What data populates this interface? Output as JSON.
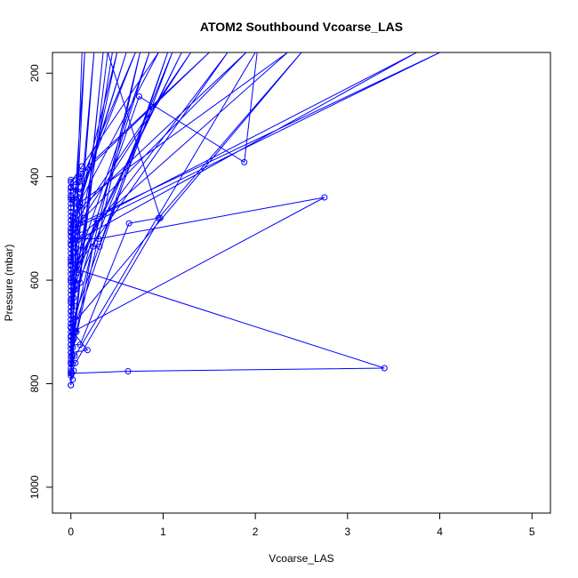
{
  "chart_data": {
    "type": "line",
    "title": "ATOM2 Southbound Vcoarse_LAS",
    "xlabel": "Vcoarse_LAS",
    "ylabel": "Pressure (mbar)",
    "xlim": [
      -0.2,
      5.2
    ],
    "ylim": [
      1050,
      160
    ],
    "y_reversed": true,
    "grid": false,
    "line_color": "#0000ff",
    "marker": "open-circle",
    "x_ticks": [
      0,
      1,
      2,
      3,
      4,
      5
    ],
    "x_tick_labels": [
      "0",
      "1",
      "2",
      "3",
      "4",
      "5"
    ],
    "y_ticks": [
      200,
      400,
      600,
      800,
      1000
    ],
    "y_tick_labels": [
      "200",
      "400",
      "600",
      "800",
      "1000"
    ],
    "series": [
      {
        "points": [
          [
            0.0,
            803
          ],
          [
            0.01,
            780
          ],
          [
            0.62,
            776
          ],
          [
            3.4,
            770
          ],
          [
            0.08,
            580
          ],
          [
            0.74,
            245
          ],
          [
            1.88,
            372
          ],
          [
            2.02,
            160
          ],
          [
            2.0,
            160
          ],
          [
            0.0,
            760
          ],
          [
            0.05,
            760
          ],
          [
            0.97,
            480
          ],
          [
            0.4,
            160
          ],
          [
            0.0,
            740
          ],
          [
            0.18,
            735
          ],
          [
            0.02,
            700
          ],
          [
            2.75,
            440
          ],
          [
            0.3,
            520
          ],
          [
            0.02,
            520
          ],
          [
            0.0,
            725
          ],
          [
            0.1,
            725
          ],
          [
            0.63,
            490
          ],
          [
            0.95,
            480
          ],
          [
            2.5,
            160
          ],
          [
            0.0,
            690
          ],
          [
            0.06,
            700
          ],
          [
            0.24,
            535
          ],
          [
            0.31,
            535
          ],
          [
            1.1,
            160
          ],
          [
            0.0,
            640
          ],
          [
            0.1,
            605
          ],
          [
            0.28,
            485
          ],
          [
            4.0,
            160
          ],
          [
            0.1,
            490
          ],
          [
            0.02,
            480
          ],
          [
            0.0,
            570
          ],
          [
            0.05,
            500
          ],
          [
            3.75,
            160
          ],
          [
            0.0,
            530
          ],
          [
            0.12,
            512
          ],
          [
            2.35,
            160
          ],
          [
            0.1,
            450
          ],
          [
            0.05,
            420
          ],
          [
            0.0,
            505
          ],
          [
            0.14,
            480
          ],
          [
            1.9,
            160
          ],
          [
            0.05,
            470
          ],
          [
            0.0,
            440
          ],
          [
            0.02,
            445
          ],
          [
            0.7,
            160
          ],
          [
            0.1,
            430
          ],
          [
            0.0,
            420
          ],
          [
            0.09,
            400
          ],
          [
            1.5,
            160
          ],
          [
            0.0,
            410
          ],
          [
            0.12,
            380
          ],
          [
            0.95,
            160
          ],
          [
            0.08,
            455
          ],
          [
            0.6,
            160
          ],
          [
            0.02,
            495
          ],
          [
            1.3,
            160
          ],
          [
            0.0,
            515
          ],
          [
            0.5,
            160
          ],
          [
            0.04,
            545
          ],
          [
            0.15,
            160
          ],
          [
            0.0,
            560
          ],
          [
            1.7,
            160
          ],
          [
            0.02,
            585
          ],
          [
            1.2,
            160
          ],
          [
            0.0,
            600
          ],
          [
            0.85,
            160
          ],
          [
            0.03,
            620
          ],
          [
            0.45,
            160
          ],
          [
            0.0,
            660
          ],
          [
            0.25,
            160
          ],
          [
            0.02,
            680
          ],
          [
            1.05,
            160
          ],
          [
            0.0,
            710
          ],
          [
            0.75,
            160
          ],
          [
            0.01,
            745
          ],
          [
            0.35,
            160
          ],
          [
            0.0,
            780
          ],
          [
            0.12,
            160
          ]
        ]
      },
      {
        "points": [
          [
            0.0,
            803
          ],
          [
            0.0,
            784
          ],
          [
            0.0,
            776
          ],
          [
            0.0,
            770
          ],
          [
            0.0,
            762
          ],
          [
            0.0,
            755
          ],
          [
            0.0,
            748
          ],
          [
            0.0,
            740
          ],
          [
            0.0,
            732
          ],
          [
            0.0,
            724
          ],
          [
            0.0,
            716
          ],
          [
            0.0,
            708
          ],
          [
            0.0,
            700
          ],
          [
            0.0,
            692
          ],
          [
            0.0,
            684
          ],
          [
            0.0,
            676
          ],
          [
            0.0,
            668
          ],
          [
            0.0,
            660
          ],
          [
            0.0,
            652
          ],
          [
            0.0,
            644
          ],
          [
            0.0,
            636
          ],
          [
            0.0,
            628
          ],
          [
            0.0,
            620
          ],
          [
            0.0,
            612
          ],
          [
            0.0,
            604
          ],
          [
            0.0,
            596
          ],
          [
            0.0,
            588
          ],
          [
            0.0,
            580
          ],
          [
            0.0,
            572
          ],
          [
            0.0,
            564
          ],
          [
            0.0,
            556
          ],
          [
            0.0,
            548
          ],
          [
            0.0,
            540
          ],
          [
            0.0,
            532
          ],
          [
            0.0,
            524
          ],
          [
            0.0,
            516
          ],
          [
            0.0,
            508
          ],
          [
            0.0,
            500
          ],
          [
            0.0,
            492
          ],
          [
            0.0,
            484
          ],
          [
            0.0,
            476
          ],
          [
            0.0,
            468
          ],
          [
            0.0,
            460
          ],
          [
            0.0,
            452
          ],
          [
            0.0,
            444
          ],
          [
            0.0,
            436
          ],
          [
            0.0,
            428
          ],
          [
            0.0,
            422
          ],
          [
            0.0,
            406
          ]
        ]
      },
      {
        "points": [
          [
            0.02,
            792
          ],
          [
            0.03,
            775
          ],
          [
            0.02,
            762
          ],
          [
            0.04,
            746
          ],
          [
            0.02,
            730
          ],
          [
            0.03,
            714
          ],
          [
            0.05,
            698
          ],
          [
            0.03,
            682
          ],
          [
            0.02,
            666
          ],
          [
            0.04,
            650
          ],
          [
            0.03,
            634
          ],
          [
            0.05,
            618
          ],
          [
            0.04,
            602
          ],
          [
            0.06,
            586
          ],
          [
            0.05,
            570
          ],
          [
            0.07,
            554
          ],
          [
            0.05,
            538
          ],
          [
            0.08,
            522
          ],
          [
            0.06,
            506
          ],
          [
            0.09,
            490
          ],
          [
            0.07,
            474
          ],
          [
            0.1,
            458
          ],
          [
            0.08,
            442
          ],
          [
            0.06,
            426
          ],
          [
            0.09,
            410
          ],
          [
            0.11,
            394
          ]
        ]
      }
    ]
  }
}
